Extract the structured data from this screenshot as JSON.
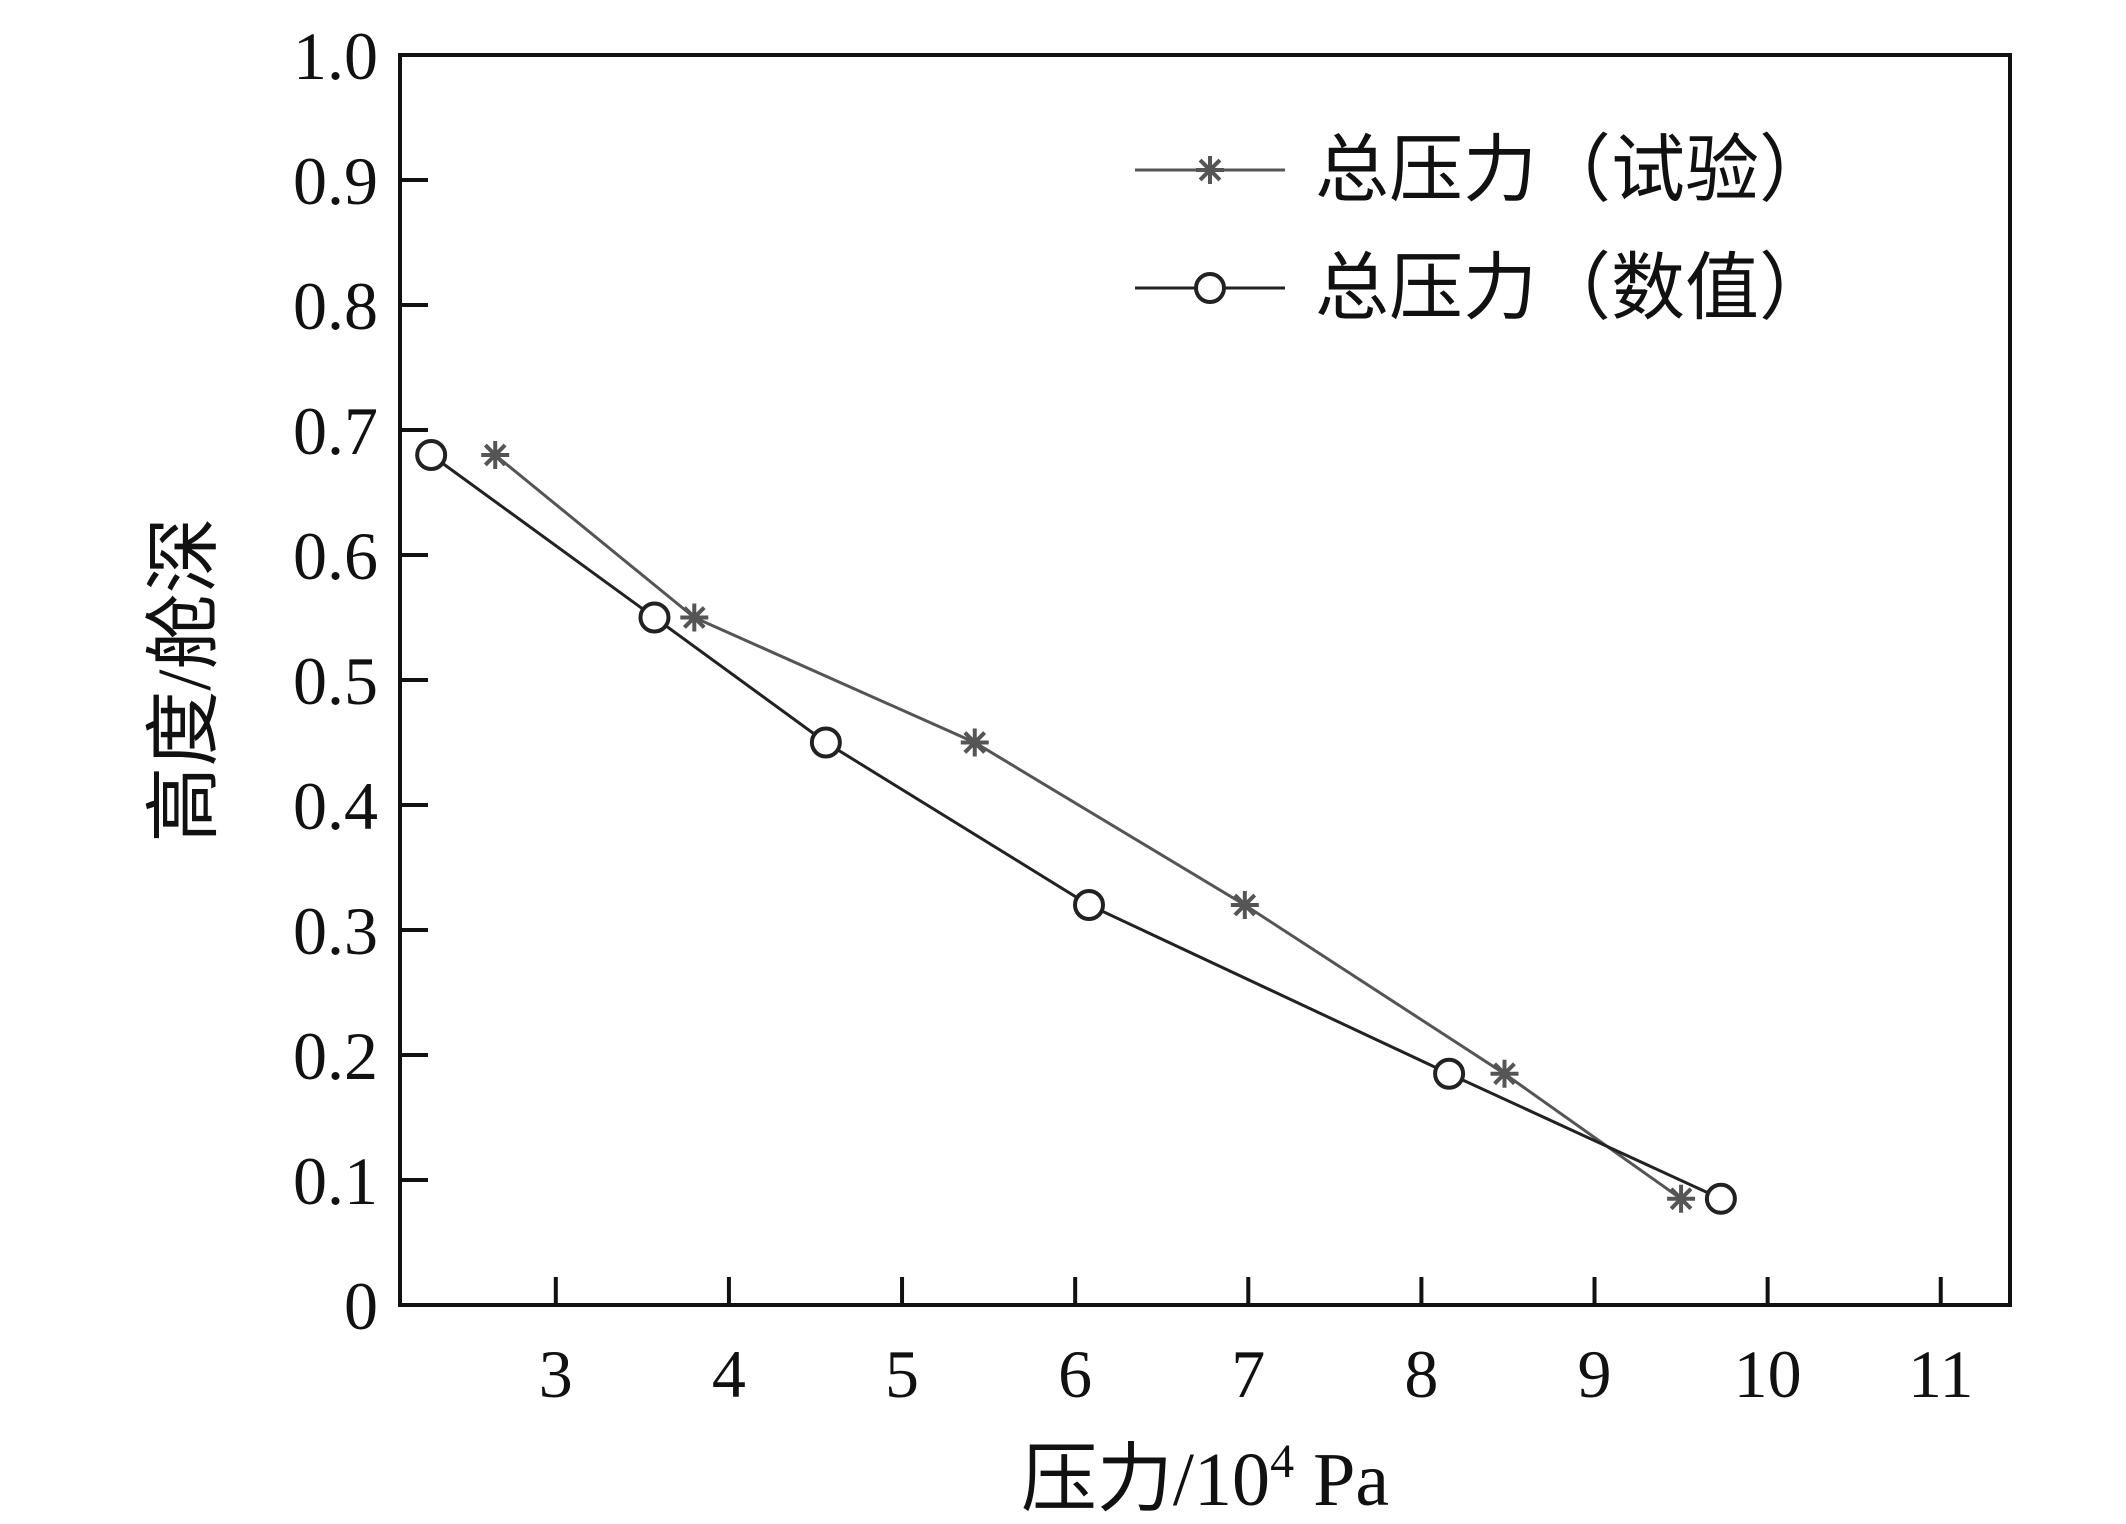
{
  "chart_data": {
    "type": "line",
    "xlabel_main": "压力/10",
    "xlabel_sup": "4",
    "xlabel_unit": " Pa",
    "ylabel": "高度/舱深",
    "xlim": [
      2.1,
      11.4
    ],
    "ylim": [
      0,
      1.0
    ],
    "x_ticks": [
      3,
      4,
      5,
      6,
      7,
      8,
      9,
      10,
      11
    ],
    "y_ticks": [
      0,
      0.1,
      0.2,
      0.3,
      0.4,
      0.5,
      0.6,
      0.7,
      0.8,
      0.9,
      1.0
    ],
    "x_tick_labels": [
      "3",
      "4",
      "5",
      "6",
      "7",
      "8",
      "9",
      "10",
      "11"
    ],
    "y_tick_labels": [
      "0",
      "0.1",
      "0.2",
      "0.3",
      "0.4",
      "0.5",
      "0.6",
      "0.7",
      "0.8",
      "0.9",
      "1.0"
    ],
    "grid": false,
    "legend_position": "top-right",
    "series": [
      {
        "name": "总压力（试验）",
        "marker": "asterisk",
        "color": "#555555",
        "points": [
          [
            2.65,
            0.68
          ],
          [
            3.8,
            0.55
          ],
          [
            5.42,
            0.45
          ],
          [
            6.98,
            0.32
          ],
          [
            8.48,
            0.185
          ],
          [
            9.5,
            0.085
          ]
        ]
      },
      {
        "name": "总压力（数值）",
        "marker": "circle",
        "color": "#222222",
        "points": [
          [
            2.28,
            0.68
          ],
          [
            3.57,
            0.55
          ],
          [
            4.56,
            0.45
          ],
          [
            6.08,
            0.32
          ],
          [
            8.16,
            0.185
          ],
          [
            9.73,
            0.085
          ]
        ]
      }
    ]
  }
}
